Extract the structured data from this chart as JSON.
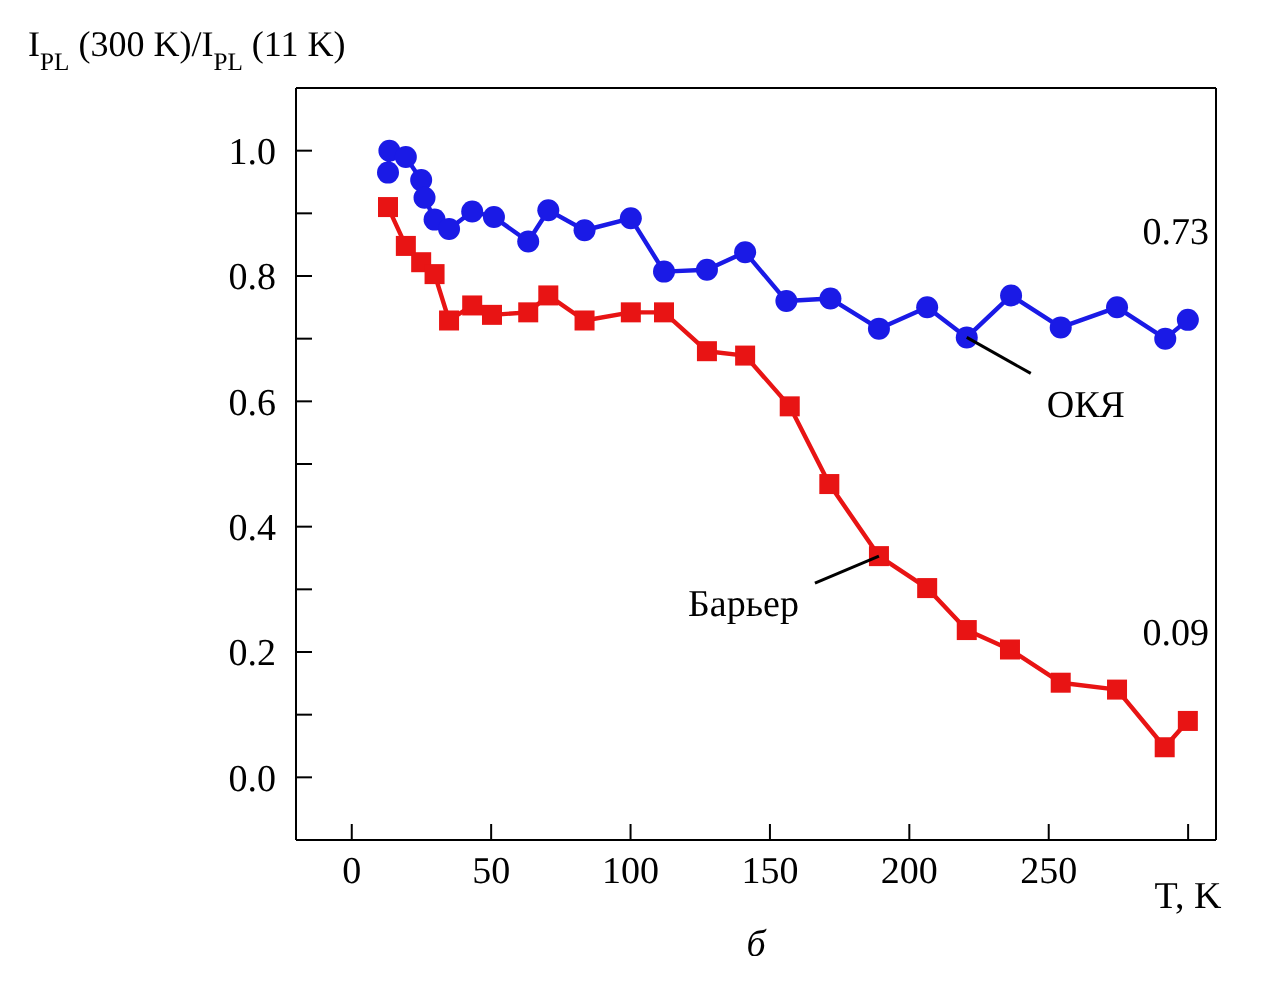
{
  "chart_data": {
    "type": "line",
    "ylabel": "I$_{PL}$ (300 K)/I$_{PL}$ (11 K)",
    "xlabel": "T, K",
    "subtitle": "б",
    "xlim": [
      -20,
      310
    ],
    "xticks": [
      0,
      50,
      100,
      150,
      200,
      250,
      {
        "value": 300,
        "label": null
      }
    ],
    "ylim": [
      -0.1,
      1.1
    ],
    "yticks": [
      {
        "value": 0,
        "label": "0.0"
      },
      {
        "value": 0.1,
        "label": null
      },
      {
        "value": 0.2,
        "label": "0.2"
      },
      {
        "value": 0.3,
        "label": null
      },
      {
        "value": 0.4,
        "label": "0.4"
      },
      {
        "value": 0.5,
        "label": null
      },
      {
        "value": 0.6,
        "label": "0.6"
      },
      {
        "value": 0.7,
        "label": null
      },
      {
        "value": 0.8,
        "label": "0.8"
      },
      {
        "value": 0.9,
        "label": null
      },
      {
        "value": 1,
        "label": "1.0"
      }
    ],
    "grid": false,
    "legend": false,
    "line_style": "solid",
    "series": [
      {
        "color": "#1a1ae6",
        "marker": "circle",
        "x": [
          13,
          13.5,
          19.4,
          24.9,
          26.1,
          29.7,
          34.9,
          43.2,
          51,
          63.3,
          70.5,
          83.5,
          100.1,
          112,
          127.4,
          141.1,
          155.9,
          171.7,
          189.1,
          206.4,
          220.6,
          236.5,
          254.3,
          274.5,
          291.8,
          299.9
        ],
        "values": [
          0.965,
          1.0,
          0.99,
          0.953,
          0.925,
          0.89,
          0.875,
          0.903,
          0.894,
          0.855,
          0.905,
          0.873,
          0.892,
          0.807,
          0.81,
          0.838,
          0.76,
          0.764,
          0.716,
          0.75,
          0.702,
          0.769,
          0.718,
          0.75,
          0.7,
          0.73
        ]
      },
      {
        "color": "#e81414",
        "marker": "square",
        "x": [
          13,
          19.4,
          24.9,
          29.7,
          34.9,
          43.2,
          50.3,
          63.3,
          70.5,
          83.5,
          100.1,
          112,
          127.4,
          141.1,
          157.1,
          171.3,
          189.1,
          206.4,
          220.6,
          236.1,
          254.3,
          274.5,
          291.6,
          299.9
        ],
        "values": [
          0.91,
          0.848,
          0.822,
          0.803,
          0.729,
          0.753,
          0.738,
          0.742,
          0.769,
          0.729,
          0.742,
          0.742,
          0.68,
          0.673,
          0.592,
          0.468,
          0.353,
          0.302,
          0.235,
          0.204,
          0.151,
          0.14,
          0.048,
          0.09
        ]
      }
    ],
    "annotations": [
      {
        "text": "0.73",
        "x": 299.9,
        "y": 0.73
      },
      {
        "text": "ОКЯ",
        "x": 220.6,
        "y": 0.702
      },
      {
        "text": "Барьер",
        "x": 189.1,
        "y": 0.353
      },
      {
        "text": "0.09",
        "x": 299.9,
        "y": 0.09
      }
    ]
  }
}
